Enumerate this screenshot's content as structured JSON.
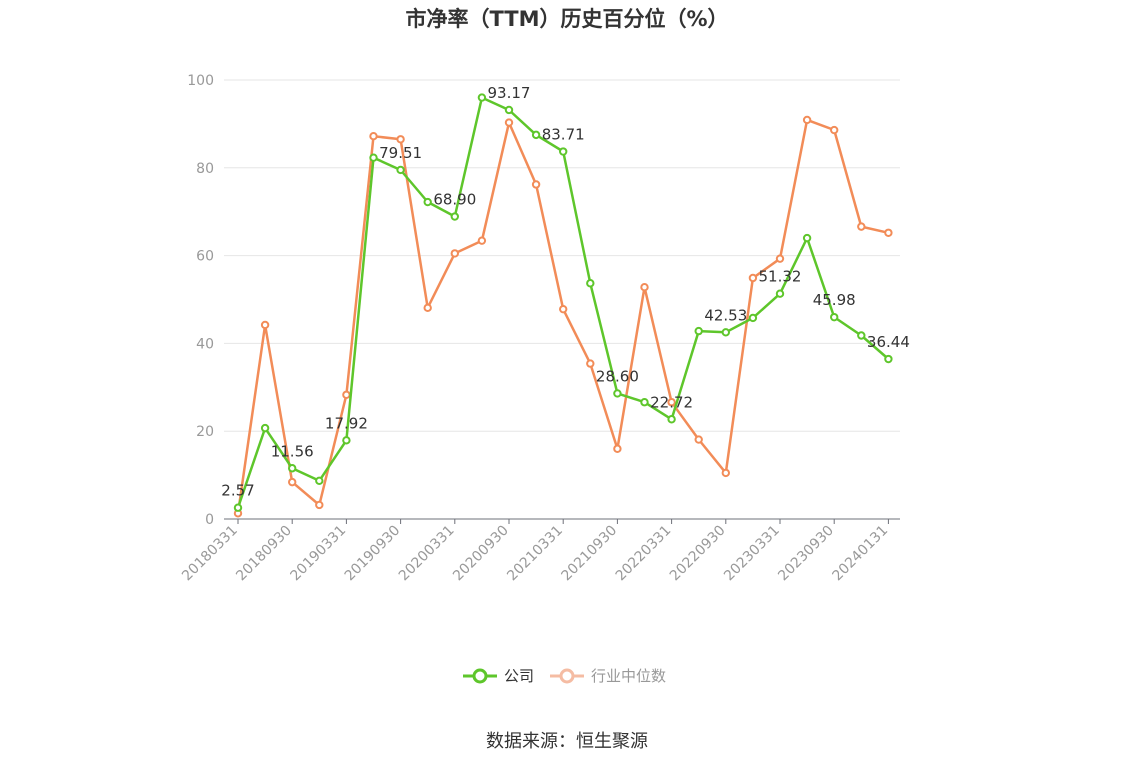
{
  "title": "市净率（TTM）历史百分位（%）",
  "source": "数据来源：恒生聚源",
  "legend": {
    "company_label": "公司",
    "industry_label": "行业中位数",
    "company_color": "#5ec62b",
    "industry_color": "#f28c58",
    "industry_legend_color": "#f5bca3",
    "industry_legend_text_color": "#999999"
  },
  "chart_data": {
    "type": "line",
    "title": "市净率（TTM）历史百分位（%）",
    "xlabel": "",
    "ylabel": "",
    "ylim": [
      0,
      100
    ],
    "yticks": [
      0,
      20,
      40,
      60,
      80,
      100
    ],
    "grid": true,
    "legend_position": "bottom",
    "x": [
      "20180331",
      "20180630",
      "20180930",
      "20181231",
      "20190331",
      "20190630",
      "20190930",
      "20191231",
      "20200331",
      "20200630",
      "20200930",
      "20201231",
      "20210331",
      "20210630",
      "20210930",
      "20211231",
      "20220331",
      "20220630",
      "20220930",
      "20221231",
      "20230331",
      "20230630",
      "20230930",
      "20231231",
      "20240131"
    ],
    "x_tick_labels": [
      "20180331",
      "20180930",
      "20190331",
      "20190930",
      "20200331",
      "20200930",
      "20210331",
      "20210930",
      "20220331",
      "20220930",
      "20230331",
      "20230930",
      "20240131"
    ],
    "series": [
      {
        "name": "公司",
        "color": "#5ec62b",
        "values": [
          2.57,
          20.7,
          11.56,
          8.7,
          17.92,
          82.3,
          79.51,
          72.2,
          68.9,
          96.0,
          93.17,
          87.5,
          83.71,
          53.7,
          28.6,
          26.6,
          22.72,
          42.8,
          42.53,
          45.8,
          51.32,
          64.0,
          45.98,
          41.8,
          36.44
        ],
        "data_labels": [
          "2.57",
          "",
          "11.56",
          "",
          "17.92",
          "",
          "79.51",
          "",
          "68.90",
          "",
          "93.17",
          "",
          "83.71",
          "",
          "28.60",
          "",
          "22.72",
          "",
          "42.53",
          "",
          "51.32",
          "",
          "45.98",
          "",
          "36.44"
        ]
      },
      {
        "name": "行业中位数",
        "color": "#f28c58",
        "values": [
          1.3,
          44.2,
          8.4,
          3.2,
          28.3,
          87.2,
          86.5,
          48.1,
          60.5,
          63.4,
          90.3,
          76.2,
          47.8,
          35.4,
          16.0,
          52.8,
          26.6,
          18.1,
          10.5,
          54.9,
          59.3,
          90.9,
          88.6,
          66.6,
          65.2
        ]
      }
    ]
  }
}
